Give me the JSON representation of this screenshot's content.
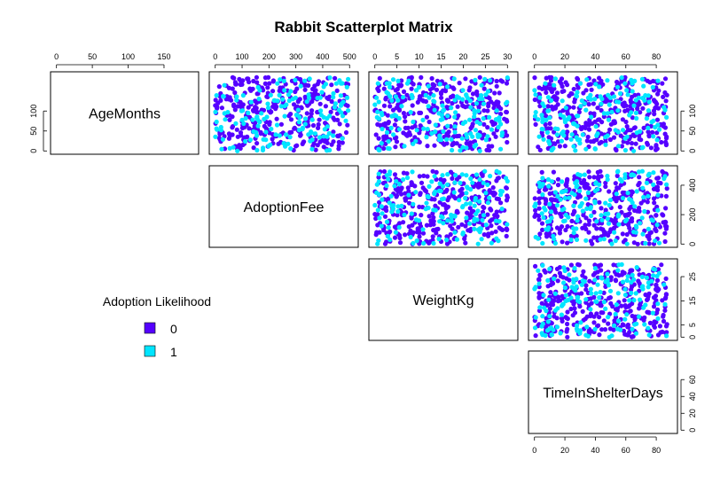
{
  "chart_data": {
    "type": "scatter",
    "title": "Rabbit Scatterplot Matrix",
    "variables": [
      {
        "name": "AgeMonths",
        "range": [
          0,
          190
        ],
        "ticks": [
          0,
          50,
          100,
          150
        ],
        "tick_labels": [
          "0",
          "50",
          "100",
          "150"
        ]
      },
      {
        "name": "AdoptionFee",
        "range": [
          0,
          510
        ],
        "ticks": [
          0,
          100,
          200,
          300,
          400,
          500
        ],
        "tick_labels": [
          "0",
          "100",
          "200",
          "300",
          "400",
          "500"
        ]
      },
      {
        "name": "WeightKg",
        "range": [
          0,
          31
        ],
        "ticks": [
          0,
          5,
          10,
          15,
          20,
          25,
          30
        ],
        "tick_labels": [
          "0",
          "5",
          "10",
          "15",
          "20",
          "25",
          "30"
        ]
      },
      {
        "name": "TimeInShelterDays",
        "range": [
          0,
          90
        ],
        "ticks": [
          0,
          20,
          40,
          60,
          80
        ],
        "tick_labels": [
          "0",
          "20",
          "40",
          "60",
          "80"
        ]
      }
    ],
    "axes": {
      "top": [
        {
          "variable": "AgeMonths",
          "ticks": [
            0,
            50,
            100,
            150
          ]
        },
        {
          "variable": "AdoptionFee",
          "ticks": [
            0,
            100,
            200,
            300,
            400,
            500
          ]
        },
        {
          "variable": "WeightKg",
          "ticks": [
            0,
            5,
            10,
            15,
            20,
            25,
            30
          ]
        },
        {
          "variable": "TimeInShelterDays",
          "ticks": [
            0,
            20,
            40,
            60,
            80
          ]
        }
      ],
      "left": [
        {
          "variable": "AgeMonths",
          "ticks": [
            0,
            50,
            100
          ]
        }
      ],
      "right": [
        {
          "variable": "AgeMonths",
          "ticks": [
            0,
            50,
            100
          ]
        },
        {
          "variable": "AdoptionFee",
          "ticks": [
            0,
            200,
            400
          ]
        },
        {
          "variable": "WeightKg",
          "ticks": [
            0,
            5,
            15,
            25
          ]
        },
        {
          "variable": "TimeInShelterDays",
          "ticks": [
            0,
            20,
            40,
            60
          ]
        }
      ],
      "bottom": [
        {
          "variable": "TimeInShelterDays",
          "ticks": [
            0,
            20,
            40,
            60,
            80
          ]
        }
      ]
    },
    "legend": {
      "title": "Adoption Likelihood",
      "placement": "bottom-left",
      "items": [
        {
          "label": "0",
          "color": "#5500ff"
        },
        {
          "label": "1",
          "color": "#00e5ff"
        }
      ]
    },
    "colors": {
      "0": "#5500ff",
      "1": "#00e5ff"
    },
    "grid": false,
    "layout": "upper-triangle",
    "n_points": 500,
    "seed": 7
  }
}
